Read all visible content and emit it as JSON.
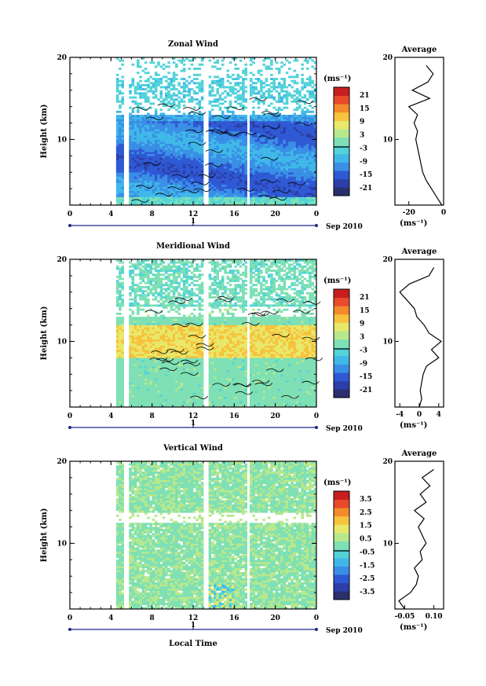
{
  "figure": {
    "xlabel": "Local Time"
  },
  "colors": {
    "colormap": [
      "#2a2f6e",
      "#2c3fa8",
      "#2f59d4",
      "#3a8ee6",
      "#3fb8e8",
      "#52d3d8",
      "#7ee0b4",
      "#b8e88c",
      "#e8e86a",
      "#f7c23c",
      "#f38a2c",
      "#e84a2a",
      "#c81e1e"
    ],
    "contour": "#000000",
    "gap": "#ffffff"
  },
  "chart_data": [
    {
      "type": "heatmap",
      "title": "Zonal Wind",
      "ylabel": "Height (km)",
      "xlim": [
        0,
        24
      ],
      "ylim": [
        2,
        20
      ],
      "x_ticks": [
        "0",
        "4",
        "8",
        "12",
        "16",
        "20",
        "0"
      ],
      "y_ticks": [
        "10",
        "20"
      ],
      "date_ticks": [
        "1"
      ],
      "date_label": "Sep 2010",
      "colorbar": {
        "unit": "(ms⁻¹)",
        "ticks": [
          "21",
          "15",
          "9",
          "3",
          "-3",
          "-9",
          "-15",
          "-21"
        ],
        "range": [
          -24,
          24
        ]
      },
      "data_coverage_hours": [
        [
          4.6,
          5.3
        ],
        [
          5.8,
          13.1
        ],
        [
          13.5,
          17.2
        ],
        [
          17.6,
          24
        ]
      ],
      "profile_description": "westward winds -20 to -10 m/s below 12 km, weak above",
      "average_profile": {
        "title": "Average",
        "xlabel": "(ms⁻¹)",
        "x_ticks": [
          "-20",
          "0"
        ],
        "xlim": [
          -28,
          0
        ],
        "height_km": [
          2,
          3,
          4,
          5,
          6,
          7,
          8,
          9,
          10,
          11,
          12,
          13,
          14,
          15,
          16,
          17,
          18,
          19
        ],
        "value": [
          -1,
          -4,
          -7,
          -10,
          -12,
          -13,
          -14,
          -15,
          -16,
          -15,
          -17,
          -15,
          -20,
          -8,
          -18,
          -9,
          -6,
          -10
        ]
      }
    },
    {
      "type": "heatmap",
      "title": "Meridional Wind",
      "ylabel": "Height (km)",
      "xlim": [
        0,
        24
      ],
      "ylim": [
        2,
        20
      ],
      "x_ticks": [
        "0",
        "4",
        "8",
        "12",
        "16",
        "20",
        "0"
      ],
      "y_ticks": [
        "10",
        "20"
      ],
      "date_ticks": [
        "1"
      ],
      "date_label": "Sep 2010",
      "colorbar": {
        "unit": "(ms⁻¹)",
        "ticks": [
          "21",
          "15",
          "9",
          "3",
          "-3",
          "-9",
          "-15",
          "-21"
        ],
        "range": [
          -24,
          24
        ]
      },
      "data_coverage_hours": [
        [
          4.6,
          5.3
        ],
        [
          5.8,
          13.1
        ],
        [
          13.5,
          17.2
        ],
        [
          17.6,
          24
        ]
      ],
      "average_profile": {
        "title": "Average",
        "xlabel": "(ms⁻¹)",
        "x_ticks": [
          "-4",
          "0",
          "4"
        ],
        "xlim": [
          -5,
          5
        ],
        "height_km": [
          2,
          3,
          4,
          5,
          6,
          7,
          8,
          9,
          10,
          11,
          12,
          13,
          14,
          15,
          16,
          17,
          18,
          19
        ],
        "value": [
          0,
          0.5,
          0.2,
          0.5,
          0.8,
          1.5,
          4,
          2.5,
          4.5,
          2,
          1,
          -0.5,
          -1,
          -2.5,
          -4,
          -2,
          2,
          3
        ]
      }
    },
    {
      "type": "heatmap",
      "title": "Vertical Wind",
      "ylabel": "Height (km)",
      "xlim": [
        0,
        24
      ],
      "ylim": [
        2,
        20
      ],
      "x_ticks": [
        "0",
        "4",
        "8",
        "12",
        "16",
        "20",
        "0"
      ],
      "y_ticks": [
        "10",
        "20"
      ],
      "date_ticks": [
        "1"
      ],
      "date_label": "Sep 2010",
      "colorbar": {
        "unit": "(ms⁻¹)",
        "ticks": [
          "3.5",
          "2.5",
          "1.5",
          "0.5",
          "-0.5",
          "-1.5",
          "-2.5",
          "-3.5"
        ],
        "range": [
          -4,
          4
        ]
      },
      "data_coverage_hours": [
        [
          4.6,
          5.3
        ],
        [
          5.8,
          13.1
        ],
        [
          13.5,
          17.2
        ],
        [
          17.6,
          24
        ]
      ],
      "average_profile": {
        "title": "Average",
        "xlabel": "(ms⁻¹)",
        "x_ticks": [
          "-0.05",
          "0.10"
        ],
        "xlim": [
          -0.1,
          0.15
        ],
        "height_km": [
          2,
          3,
          4,
          5,
          6,
          7,
          8,
          9,
          10,
          11,
          12,
          13,
          14,
          15,
          16,
          17,
          18,
          19
        ],
        "value": [
          -0.05,
          -0.08,
          -0.02,
          0.01,
          0.02,
          0.0,
          0.04,
          0.03,
          0.06,
          0.04,
          0.02,
          0.05,
          0.0,
          0.06,
          0.03,
          0.08,
          0.04,
          0.1
        ]
      }
    }
  ]
}
